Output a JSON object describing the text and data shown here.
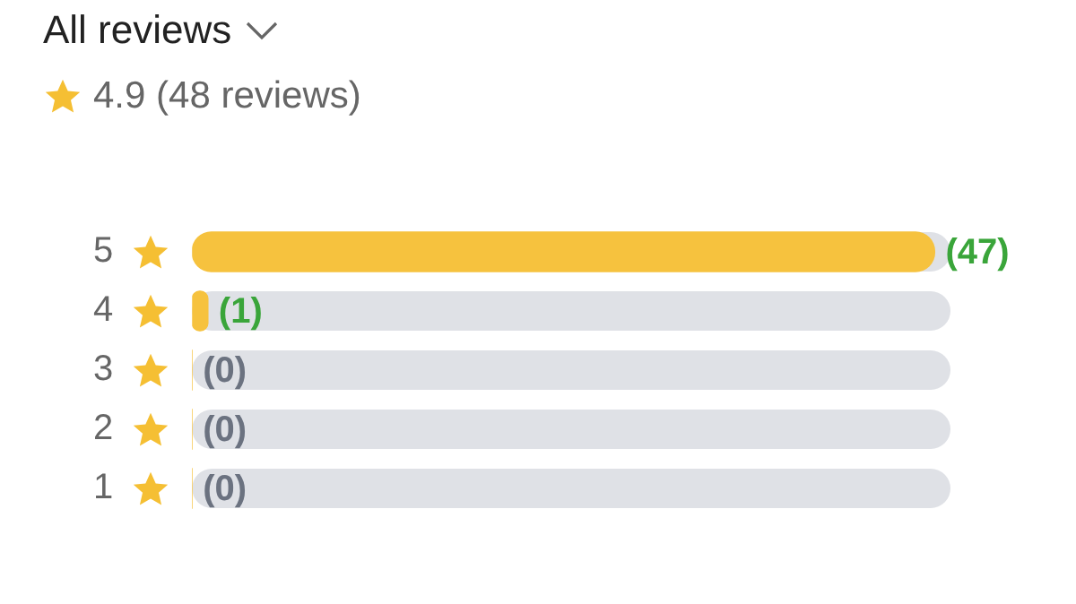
{
  "chart_data": {
    "type": "bar",
    "orientation": "horizontal",
    "title": "All reviews",
    "subtitle": "4.9 (48 reviews)",
    "categories": [
      "5",
      "4",
      "3",
      "2",
      "1"
    ],
    "values": [
      47,
      1,
      0,
      0,
      0
    ],
    "color": "#f6c23e",
    "xlim": [
      0,
      48
    ],
    "value_labels": [
      "(47)",
      "(1)",
      "(0)",
      "(0)",
      "(0)"
    ],
    "tick_labels": "y"
  }
}
